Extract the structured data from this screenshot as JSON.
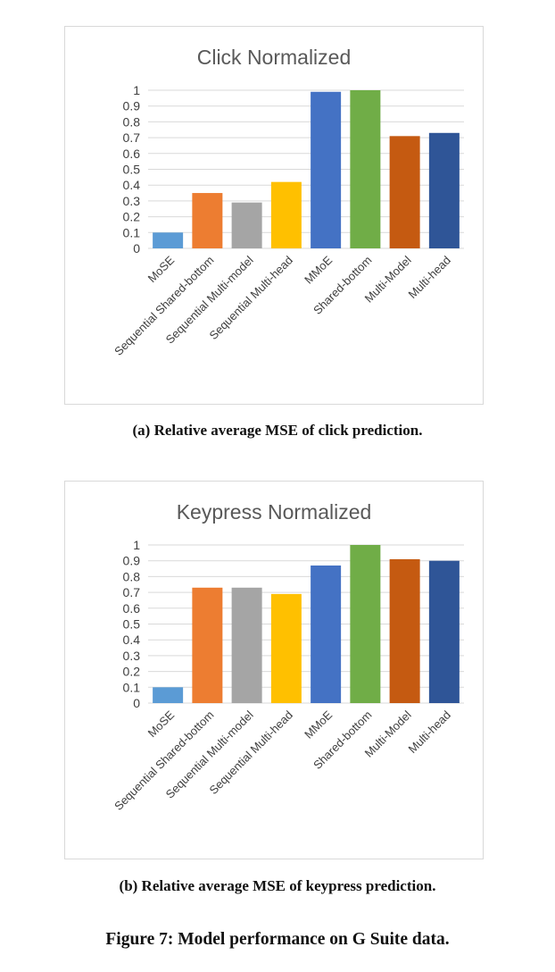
{
  "figure_caption": "Figure 7: Model performance on G Suite data.",
  "captions": [
    "(a) Relative average MSE of click prediction.",
    "(b) Relative average MSE of keypress prediction."
  ],
  "colors": {
    "MoSE": "#5b9bd5",
    "Sequential Shared-bottom": "#ed7d31",
    "Sequential Multi-model": "#a5a5a5",
    "Sequential Multi-head": "#ffc000",
    "MMoE": "#4472c4",
    "Shared-bottom": "#70ad47",
    "Multi-Model": "#c55a11",
    "Multi-head": "#2f5597",
    "gridline": "#d9d9d9"
  },
  "chart_data": [
    {
      "type": "bar",
      "title": "Click Normalized",
      "categories": [
        "MoSE",
        "Sequential Shared-bottom",
        "Sequential Multi-model",
        "Sequential Multi-head",
        "MMoE",
        "Shared-bottom",
        "Multi-Model",
        "Multi-head"
      ],
      "values": [
        0.1,
        0.35,
        0.29,
        0.42,
        0.99,
        1.0,
        0.71,
        0.73
      ],
      "yticks": [
        "0",
        "0.1",
        "0.2",
        "0.3",
        "0.4",
        "0.5",
        "0.6",
        "0.7",
        "0.8",
        "0.9",
        "1"
      ],
      "ylim": [
        0,
        1
      ],
      "grid": true
    },
    {
      "type": "bar",
      "title": "Keypress Normalized",
      "categories": [
        "MoSE",
        "Sequential Shared-bottom",
        "Sequential Multi-model",
        "Sequential Multi-head",
        "MMoE",
        "Shared-bottom",
        "Multi-Model",
        "Multi-head"
      ],
      "values": [
        0.1,
        0.73,
        0.73,
        0.69,
        0.87,
        1.0,
        0.91,
        0.9
      ],
      "yticks": [
        "0",
        "0.1",
        "0.2",
        "0.3",
        "0.4",
        "0.5",
        "0.6",
        "0.7",
        "0.8",
        "0.9",
        "1"
      ],
      "ylim": [
        0,
        1
      ],
      "grid": true
    }
  ]
}
